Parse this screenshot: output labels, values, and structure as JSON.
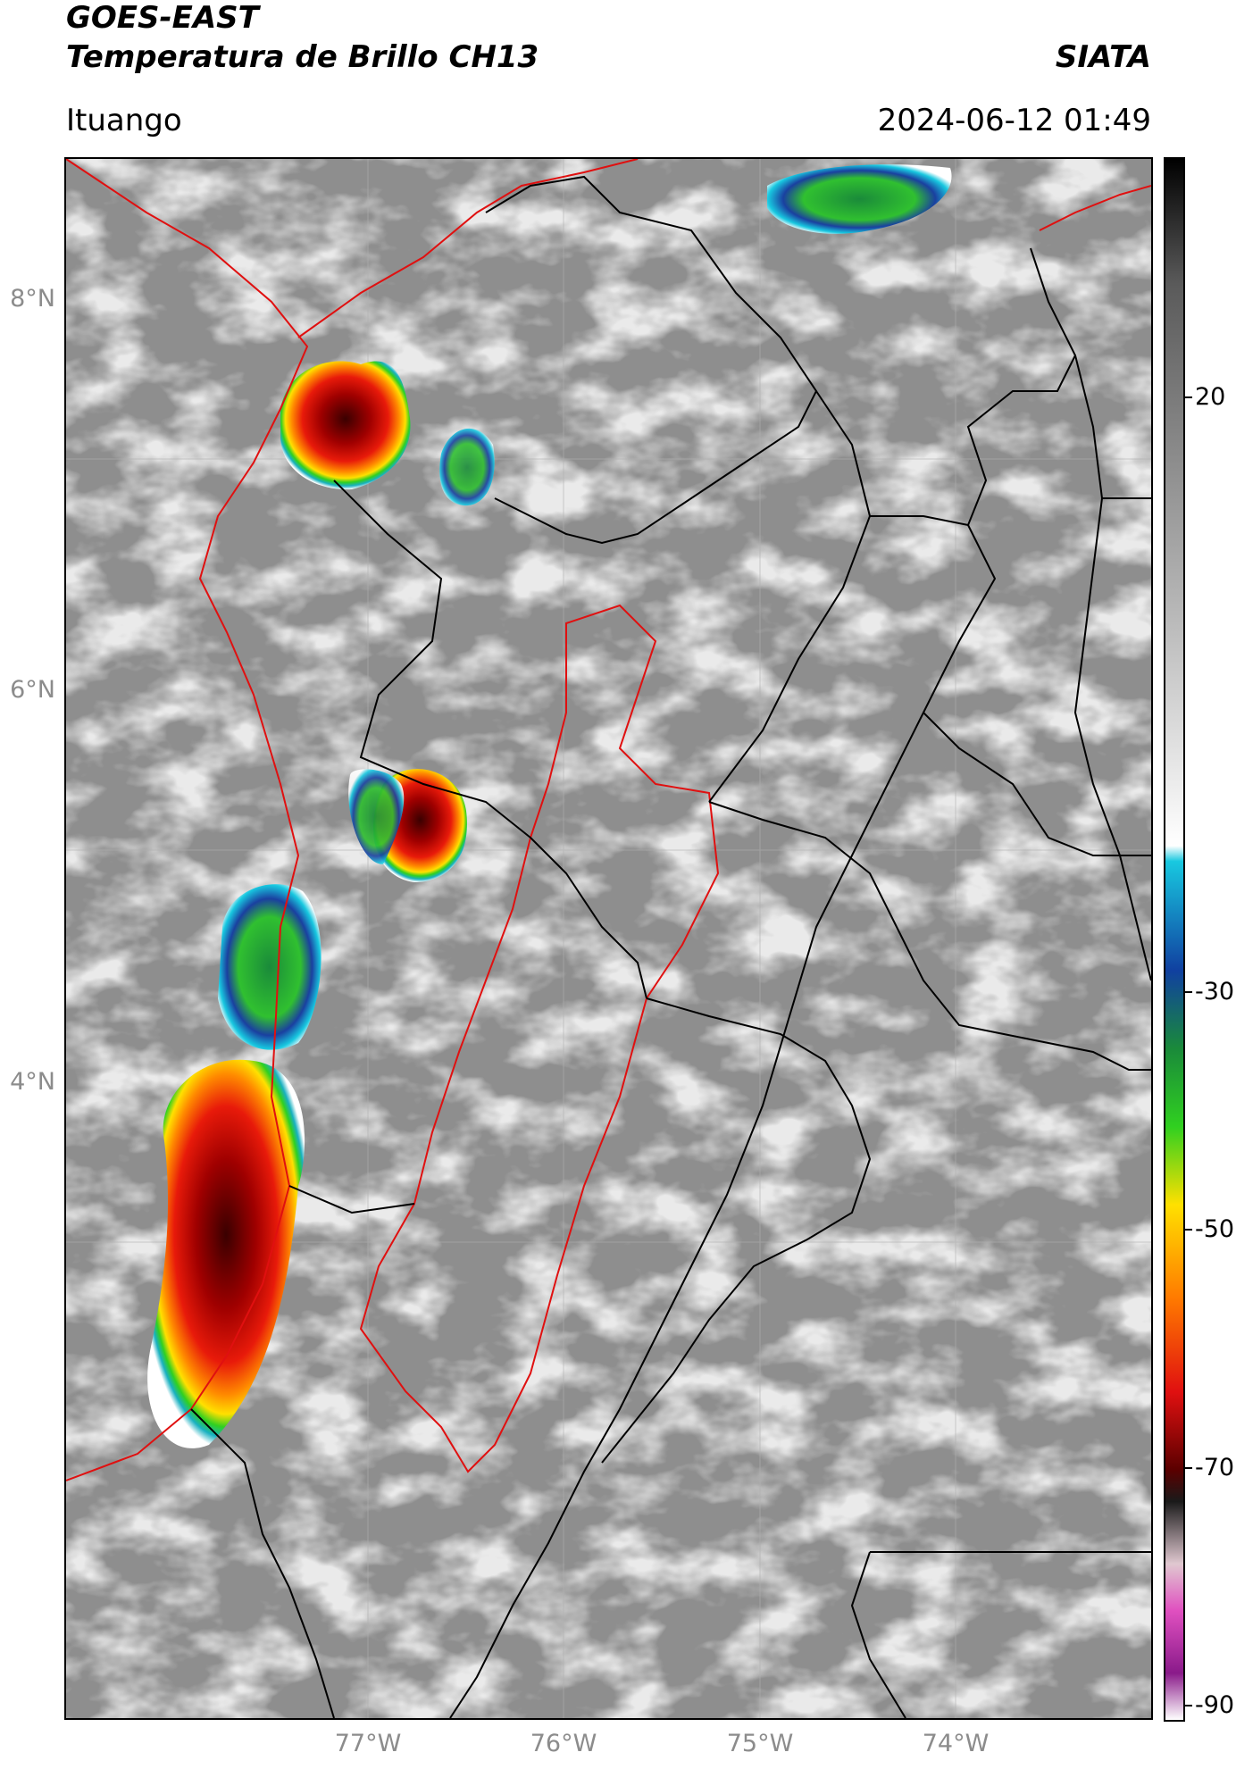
{
  "header": {
    "title_line1": "GOES-EAST",
    "title_line2": "Temperatura de Brillo CH13",
    "org": "SIATA",
    "location": "Ituango",
    "datetime": "2024-06-12 01:49"
  },
  "map": {
    "lat_labels": [
      "8°N",
      "6°N",
      "4°N"
    ],
    "lon_labels": [
      "77°W",
      "76°W",
      "75°W",
      "74°W"
    ]
  },
  "colorbar": {
    "labels": [
      "20",
      "-30",
      "-50",
      "-70",
      "-90"
    ],
    "stops": [
      "#000000",
      "#5a5a5a",
      "#bcbcbc",
      "#ffffff",
      "#18c8e0",
      "#1040a0",
      "#1a8a3a",
      "#30d020",
      "#ffe000",
      "#ff7a00",
      "#e01010",
      "#5a0000",
      "#1a1a1a",
      "#e0c8d0",
      "#e050c0",
      "#8a1a8a",
      "#ffffff"
    ]
  }
}
